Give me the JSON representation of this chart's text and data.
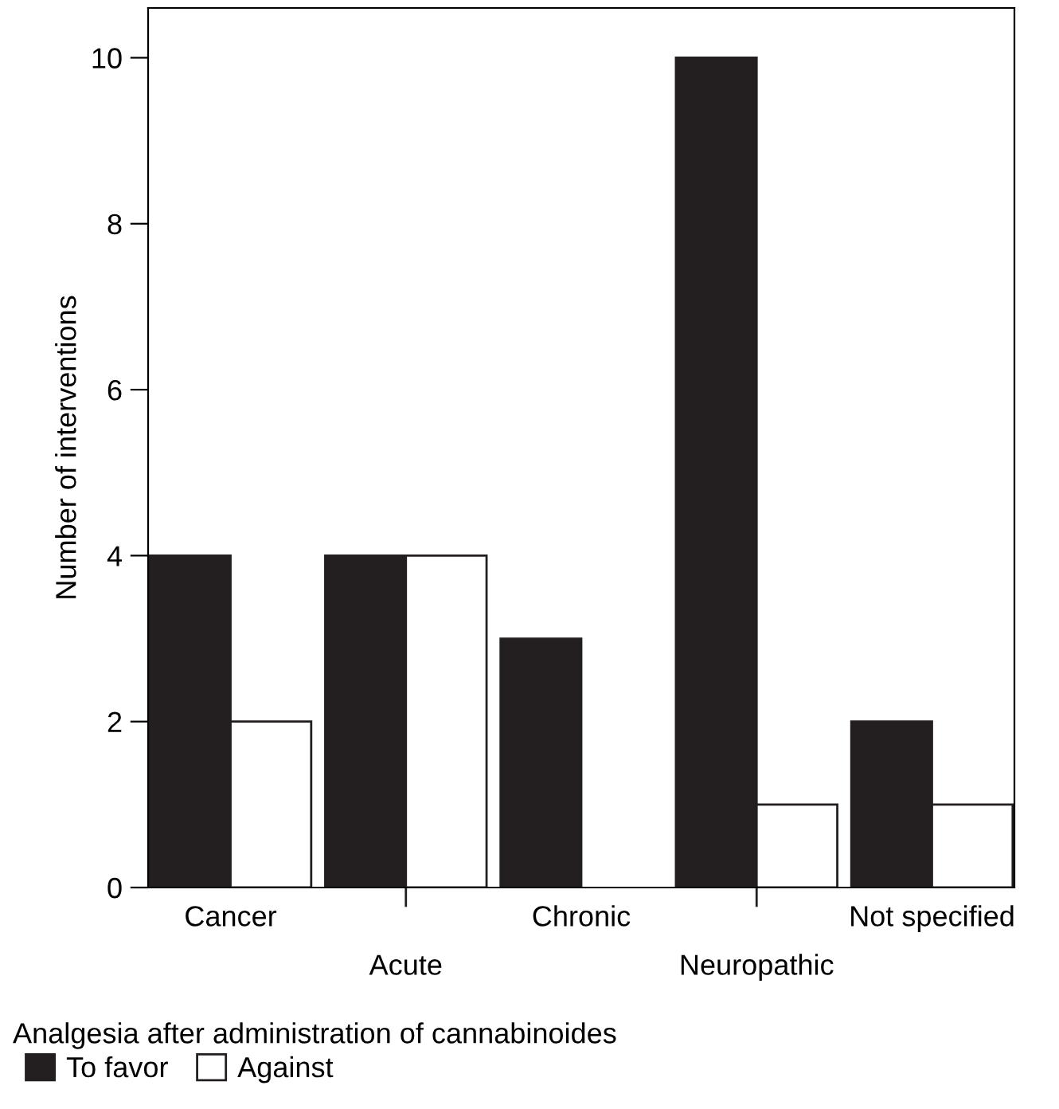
{
  "chart_data": {
    "type": "bar",
    "categories": [
      "Cancer",
      "Acute",
      "Chronic",
      "Neuropathic",
      "Not specified"
    ],
    "series": [
      {
        "name": "To favor",
        "color": "#231f20",
        "values": [
          4,
          4,
          3,
          10,
          2
        ]
      },
      {
        "name": "Against",
        "color": "#ffffff",
        "values": [
          2,
          4,
          0,
          1,
          1
        ]
      }
    ],
    "xlabel": "Analgesia after administration of cannabinoides",
    "ylabel": "Number of interventions",
    "ylim": [
      0,
      10.6
    ],
    "yticks": [
      0,
      2,
      4,
      6,
      8,
      10
    ],
    "grid": false,
    "legend": "bottom"
  }
}
